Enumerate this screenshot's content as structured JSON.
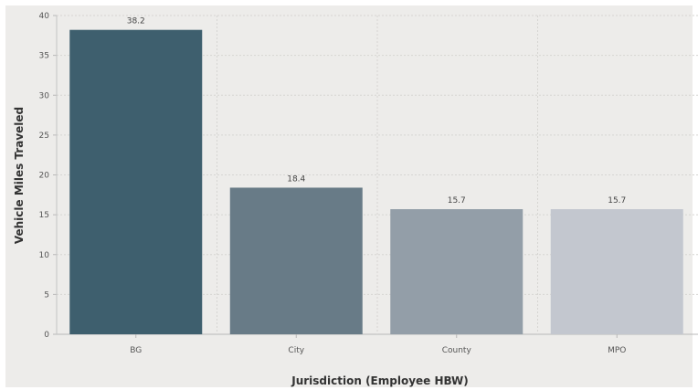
{
  "chart_data": {
    "type": "bar",
    "categories": [
      "BG",
      "City",
      "County",
      "MPO"
    ],
    "values": [
      38.2,
      18.4,
      15.7,
      15.7
    ],
    "data_labels": [
      "38.2",
      "18.4",
      "15.7",
      "15.7"
    ],
    "title": "",
    "xlabel": "Jurisdiction (Employee HBW)",
    "ylabel": "Vehicle Miles Traveled",
    "ylim": [
      0,
      40
    ],
    "yticks": [
      0,
      5,
      10,
      15,
      20,
      25,
      30,
      35,
      40
    ],
    "grid": true,
    "bar_colors": [
      "#3e5f6e",
      "#687b87",
      "#939ea8",
      "#c3c7cf"
    ],
    "background_color": "#edecea"
  }
}
